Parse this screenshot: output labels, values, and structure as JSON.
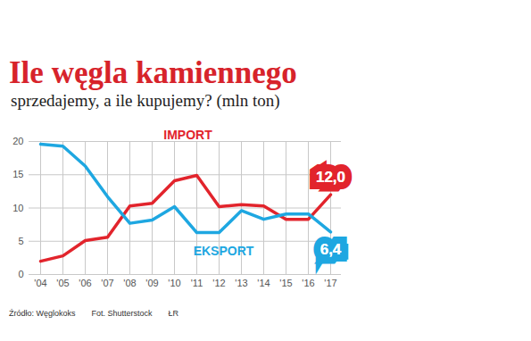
{
  "chart_data": {
    "type": "line",
    "title": "Ile węgla kamiennego",
    "subtitle": "sprzedajemy, a ile kupujemy? (mln ton)",
    "categories": [
      "'04",
      "'05",
      "'06",
      "'07",
      "'08",
      "'09",
      "'10",
      "'11",
      "'12",
      "'13",
      "'14",
      "'15",
      "'16",
      "'17"
    ],
    "series": [
      {
        "name": "IMPORT",
        "color": "#e2242c",
        "values": [
          2.0,
          2.8,
          5.1,
          5.6,
          10.3,
          10.7,
          14.1,
          14.9,
          10.2,
          10.5,
          10.3,
          8.3,
          8.3,
          12.0
        ],
        "value_labels": [
          null,
          null,
          null,
          null,
          null,
          null,
          null,
          null,
          null,
          null,
          null,
          null,
          null,
          "12,0"
        ]
      },
      {
        "name": "EKSPORT",
        "color": "#1ea7e1",
        "values": [
          19.6,
          19.3,
          16.3,
          11.7,
          7.7,
          8.2,
          10.2,
          6.3,
          6.3,
          9.6,
          8.3,
          9.1,
          9.1,
          6.4
        ],
        "value_labels": [
          null,
          null,
          null,
          null,
          null,
          null,
          null,
          null,
          null,
          null,
          null,
          null,
          null,
          "6,4"
        ]
      }
    ],
    "ylim": [
      0,
      20
    ],
    "yticks": [
      0,
      5,
      10,
      15,
      20
    ],
    "grid": true,
    "source": "Źródło: Węglokoks",
    "credit": "Fot. Shutterstock",
    "sign": "ŁR"
  }
}
